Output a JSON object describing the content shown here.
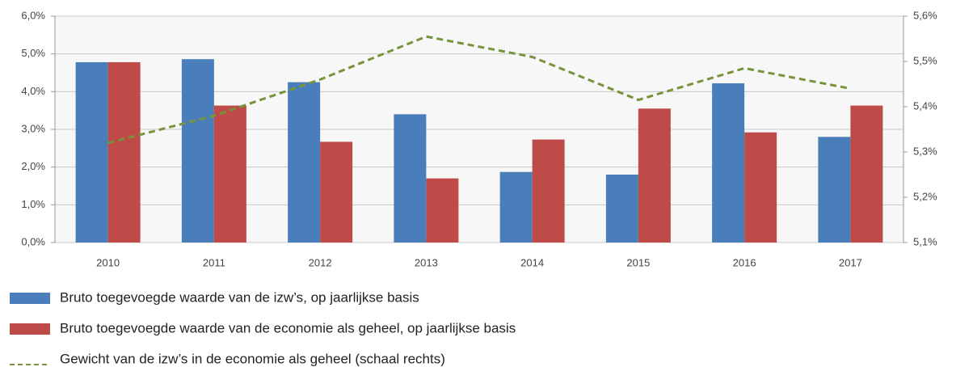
{
  "chart_data": {
    "type": "bar",
    "categories": [
      "2010",
      "2011",
      "2012",
      "2013",
      "2014",
      "2015",
      "2016",
      "2017"
    ],
    "series": [
      {
        "name": "Bruto toegevoegde waarde van de izw’s, op jaarlijkse basis",
        "color": "#4a7ebb",
        "values": [
          4.78,
          4.86,
          4.25,
          3.4,
          1.87,
          1.8,
          4.22,
          2.8
        ]
      },
      {
        "name": "Bruto toegevoegde waarde van de economie als geheel, op jaarlijkse basis",
        "color": "#be4b48",
        "values": [
          4.78,
          3.63,
          2.67,
          1.7,
          2.73,
          3.55,
          2.92,
          3.63
        ]
      },
      {
        "name": "Gewicht van de izw’s in de economie als geheel (schaal rechts)",
        "color": "#77933c",
        "type": "line",
        "dashed": true,
        "axis": "y2",
        "values": [
          5.32,
          5.38,
          5.46,
          5.555,
          5.51,
          5.415,
          5.485,
          5.44
        ]
      }
    ],
    "ylim": [
      0,
      6
    ],
    "yticks": [
      {
        "value": 0,
        "label": "0,0%"
      },
      {
        "value": 1,
        "label": "1,0%"
      },
      {
        "value": 2,
        "label": "2,0%"
      },
      {
        "value": 3,
        "label": "3,0%"
      },
      {
        "value": 4,
        "label": "4,0%"
      },
      {
        "value": 5,
        "label": "5,0%"
      },
      {
        "value": 6,
        "label": "6,0%"
      }
    ],
    "y2lim": [
      5.1,
      5.6
    ],
    "y2ticks": [
      {
        "value": 5.1,
        "label": "5,1%"
      },
      {
        "value": 5.2,
        "label": "5,2%"
      },
      {
        "value": 5.3,
        "label": "5,3%"
      },
      {
        "value": 5.4,
        "label": "5,4%"
      },
      {
        "value": 5.5,
        "label": "5,5%"
      },
      {
        "value": 5.6,
        "label": "5,6%"
      }
    ],
    "grid": true,
    "legend": "bottom"
  }
}
